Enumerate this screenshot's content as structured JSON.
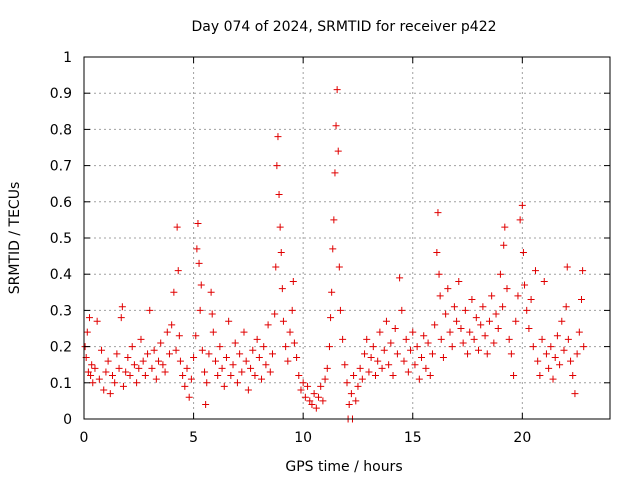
{
  "chart_data": {
    "type": "scatter",
    "title": "Day 074 of 2024, SRMTID for receiver p422",
    "xlabel": "GPS time / hours",
    "ylabel": "SRMTID / TECUs",
    "xlim": [
      0,
      24
    ],
    "ylim": [
      0,
      1
    ],
    "xticks": [
      0,
      5,
      10,
      15,
      20
    ],
    "xtick_labels": [
      "0",
      "5",
      "10",
      "15",
      "20"
    ],
    "yticks": [
      0,
      0.1,
      0.2,
      0.3,
      0.4,
      0.5,
      0.6,
      0.7,
      0.8,
      0.9,
      1
    ],
    "ytick_labels": [
      "0",
      "0.1",
      "0.2",
      "0.3",
      "0.4",
      "0.5",
      "0.6",
      "0.7",
      "0.8",
      "0.9",
      "1"
    ],
    "grid": true,
    "marker": "plus",
    "color": "#e00000",
    "series": [
      {
        "name": "SRMTID",
        "points": [
          [
            0.05,
            0.2
          ],
          [
            0.1,
            0.17
          ],
          [
            0.15,
            0.24
          ],
          [
            0.2,
            0.13
          ],
          [
            0.25,
            0.28
          ],
          [
            0.3,
            0.12
          ],
          [
            0.35,
            0.15
          ],
          [
            0.4,
            0.1
          ],
          [
            0.5,
            0.14
          ],
          [
            0.6,
            0.27
          ],
          [
            0.7,
            0.11
          ],
          [
            0.8,
            0.19
          ],
          [
            0.9,
            0.08
          ],
          [
            1.0,
            0.13
          ],
          [
            1.1,
            0.16
          ],
          [
            1.2,
            0.07
          ],
          [
            1.3,
            0.12
          ],
          [
            1.4,
            0.1
          ],
          [
            1.5,
            0.18
          ],
          [
            1.6,
            0.14
          ],
          [
            1.7,
            0.28
          ],
          [
            1.75,
            0.31
          ],
          [
            1.8,
            0.09
          ],
          [
            1.9,
            0.13
          ],
          [
            2.0,
            0.17
          ],
          [
            2.1,
            0.12
          ],
          [
            2.2,
            0.2
          ],
          [
            2.3,
            0.15
          ],
          [
            2.4,
            0.1
          ],
          [
            2.5,
            0.14
          ],
          [
            2.6,
            0.22
          ],
          [
            2.7,
            0.16
          ],
          [
            2.8,
            0.12
          ],
          [
            2.9,
            0.18
          ],
          [
            3.0,
            0.3
          ],
          [
            3.1,
            0.14
          ],
          [
            3.2,
            0.19
          ],
          [
            3.3,
            0.11
          ],
          [
            3.4,
            0.16
          ],
          [
            3.5,
            0.21
          ],
          [
            3.6,
            0.15
          ],
          [
            3.7,
            0.13
          ],
          [
            3.8,
            0.24
          ],
          [
            3.9,
            0.18
          ],
          [
            4.0,
            0.26
          ],
          [
            4.1,
            0.35
          ],
          [
            4.2,
            0.19
          ],
          [
            4.25,
            0.53
          ],
          [
            4.3,
            0.41
          ],
          [
            4.35,
            0.23
          ],
          [
            4.4,
            0.16
          ],
          [
            4.5,
            0.12
          ],
          [
            4.6,
            0.09
          ],
          [
            4.7,
            0.14
          ],
          [
            4.8,
            0.06
          ],
          [
            4.9,
            0.11
          ],
          [
            5.0,
            0.17
          ],
          [
            5.1,
            0.23
          ],
          [
            5.15,
            0.47
          ],
          [
            5.2,
            0.54
          ],
          [
            5.25,
            0.43
          ],
          [
            5.3,
            0.3
          ],
          [
            5.35,
            0.37
          ],
          [
            5.4,
            0.19
          ],
          [
            5.5,
            0.13
          ],
          [
            5.55,
            0.04
          ],
          [
            5.6,
            0.1
          ],
          [
            5.7,
            0.18
          ],
          [
            5.8,
            0.35
          ],
          [
            5.85,
            0.29
          ],
          [
            5.9,
            0.24
          ],
          [
            6.0,
            0.16
          ],
          [
            6.1,
            0.12
          ],
          [
            6.2,
            0.2
          ],
          [
            6.3,
            0.14
          ],
          [
            6.4,
            0.09
          ],
          [
            6.5,
            0.17
          ],
          [
            6.6,
            0.27
          ],
          [
            6.7,
            0.12
          ],
          [
            6.8,
            0.15
          ],
          [
            6.9,
            0.21
          ],
          [
            7.0,
            0.1
          ],
          [
            7.1,
            0.18
          ],
          [
            7.2,
            0.13
          ],
          [
            7.3,
            0.24
          ],
          [
            7.4,
            0.16
          ],
          [
            7.5,
            0.08
          ],
          [
            7.6,
            0.14
          ],
          [
            7.7,
            0.19
          ],
          [
            7.8,
            0.12
          ],
          [
            7.9,
            0.22
          ],
          [
            8.0,
            0.17
          ],
          [
            8.1,
            0.11
          ],
          [
            8.2,
            0.2
          ],
          [
            8.3,
            0.15
          ],
          [
            8.4,
            0.26
          ],
          [
            8.5,
            0.13
          ],
          [
            8.6,
            0.18
          ],
          [
            8.7,
            0.29
          ],
          [
            8.75,
            0.42
          ],
          [
            8.8,
            0.7
          ],
          [
            8.85,
            0.78
          ],
          [
            8.9,
            0.62
          ],
          [
            8.95,
            0.53
          ],
          [
            9.0,
            0.46
          ],
          [
            9.05,
            0.36
          ],
          [
            9.1,
            0.27
          ],
          [
            9.2,
            0.2
          ],
          [
            9.3,
            0.16
          ],
          [
            9.4,
            0.24
          ],
          [
            9.5,
            0.3
          ],
          [
            9.55,
            0.38
          ],
          [
            9.6,
            0.21
          ],
          [
            9.7,
            0.17
          ],
          [
            9.8,
            0.12
          ],
          [
            9.9,
            0.08
          ],
          [
            10.0,
            0.1
          ],
          [
            10.1,
            0.06
          ],
          [
            10.2,
            0.09
          ],
          [
            10.3,
            0.05
          ],
          [
            10.4,
            0.04
          ],
          [
            10.5,
            0.07
          ],
          [
            10.6,
            0.03
          ],
          [
            10.7,
            0.06
          ],
          [
            10.8,
            0.09
          ],
          [
            10.9,
            0.05
          ],
          [
            11.0,
            0.11
          ],
          [
            11.1,
            0.14
          ],
          [
            11.2,
            0.2
          ],
          [
            11.25,
            0.28
          ],
          [
            11.3,
            0.35
          ],
          [
            11.35,
            0.47
          ],
          [
            11.4,
            0.55
          ],
          [
            11.45,
            0.68
          ],
          [
            11.5,
            0.81
          ],
          [
            11.55,
            0.91
          ],
          [
            11.6,
            0.74
          ],
          [
            11.65,
            0.42
          ],
          [
            11.7,
            0.3
          ],
          [
            11.8,
            0.22
          ],
          [
            11.9,
            0.15
          ],
          [
            12.0,
            0.1
          ],
          [
            12.05,
            0.0
          ],
          [
            12.1,
            0.04
          ],
          [
            12.2,
            0.07
          ],
          [
            12.25,
            0.0
          ],
          [
            12.3,
            0.12
          ],
          [
            12.4,
            0.05
          ],
          [
            12.5,
            0.09
          ],
          [
            12.6,
            0.14
          ],
          [
            12.7,
            0.11
          ],
          [
            12.8,
            0.18
          ],
          [
            12.9,
            0.22
          ],
          [
            13.0,
            0.13
          ],
          [
            13.1,
            0.17
          ],
          [
            13.2,
            0.2
          ],
          [
            13.3,
            0.12
          ],
          [
            13.4,
            0.16
          ],
          [
            13.5,
            0.24
          ],
          [
            13.6,
            0.14
          ],
          [
            13.7,
            0.19
          ],
          [
            13.8,
            0.27
          ],
          [
            13.9,
            0.15
          ],
          [
            14.0,
            0.21
          ],
          [
            14.1,
            0.12
          ],
          [
            14.2,
            0.25
          ],
          [
            14.3,
            0.18
          ],
          [
            14.4,
            0.39
          ],
          [
            14.5,
            0.3
          ],
          [
            14.6,
            0.16
          ],
          [
            14.7,
            0.22
          ],
          [
            14.8,
            0.13
          ],
          [
            14.9,
            0.19
          ],
          [
            15.0,
            0.24
          ],
          [
            15.1,
            0.15
          ],
          [
            15.2,
            0.2
          ],
          [
            15.3,
            0.11
          ],
          [
            15.4,
            0.17
          ],
          [
            15.5,
            0.23
          ],
          [
            15.6,
            0.14
          ],
          [
            15.7,
            0.21
          ],
          [
            15.8,
            0.12
          ],
          [
            15.9,
            0.18
          ],
          [
            16.0,
            0.26
          ],
          [
            16.1,
            0.46
          ],
          [
            16.15,
            0.57
          ],
          [
            16.2,
            0.4
          ],
          [
            16.25,
            0.34
          ],
          [
            16.3,
            0.22
          ],
          [
            16.4,
            0.17
          ],
          [
            16.5,
            0.29
          ],
          [
            16.6,
            0.36
          ],
          [
            16.7,
            0.24
          ],
          [
            16.8,
            0.2
          ],
          [
            16.9,
            0.31
          ],
          [
            17.0,
            0.27
          ],
          [
            17.1,
            0.38
          ],
          [
            17.2,
            0.25
          ],
          [
            17.3,
            0.21
          ],
          [
            17.4,
            0.3
          ],
          [
            17.5,
            0.18
          ],
          [
            17.6,
            0.24
          ],
          [
            17.7,
            0.33
          ],
          [
            17.8,
            0.22
          ],
          [
            17.9,
            0.28
          ],
          [
            18.0,
            0.19
          ],
          [
            18.1,
            0.26
          ],
          [
            18.2,
            0.31
          ],
          [
            18.3,
            0.23
          ],
          [
            18.4,
            0.18
          ],
          [
            18.5,
            0.27
          ],
          [
            18.6,
            0.34
          ],
          [
            18.7,
            0.21
          ],
          [
            18.8,
            0.29
          ],
          [
            18.9,
            0.25
          ],
          [
            19.0,
            0.4
          ],
          [
            19.1,
            0.31
          ],
          [
            19.15,
            0.48
          ],
          [
            19.2,
            0.53
          ],
          [
            19.3,
            0.36
          ],
          [
            19.4,
            0.22
          ],
          [
            19.5,
            0.18
          ],
          [
            19.6,
            0.12
          ],
          [
            19.7,
            0.27
          ],
          [
            19.8,
            0.34
          ],
          [
            19.9,
            0.55
          ],
          [
            20.0,
            0.59
          ],
          [
            20.05,
            0.46
          ],
          [
            20.1,
            0.37
          ],
          [
            20.2,
            0.3
          ],
          [
            20.3,
            0.25
          ],
          [
            20.4,
            0.33
          ],
          [
            20.5,
            0.2
          ],
          [
            20.6,
            0.41
          ],
          [
            20.7,
            0.16
          ],
          [
            20.8,
            0.12
          ],
          [
            20.9,
            0.22
          ],
          [
            21.0,
            0.38
          ],
          [
            21.1,
            0.18
          ],
          [
            21.2,
            0.14
          ],
          [
            21.3,
            0.2
          ],
          [
            21.4,
            0.11
          ],
          [
            21.5,
            0.17
          ],
          [
            21.6,
            0.23
          ],
          [
            21.7,
            0.15
          ],
          [
            21.8,
            0.27
          ],
          [
            21.9,
            0.19
          ],
          [
            22.0,
            0.31
          ],
          [
            22.05,
            0.42
          ],
          [
            22.1,
            0.22
          ],
          [
            22.2,
            0.16
          ],
          [
            22.3,
            0.12
          ],
          [
            22.4,
            0.07
          ],
          [
            22.5,
            0.18
          ],
          [
            22.6,
            0.24
          ],
          [
            22.7,
            0.33
          ],
          [
            22.75,
            0.41
          ],
          [
            22.8,
            0.2
          ]
        ]
      }
    ]
  }
}
